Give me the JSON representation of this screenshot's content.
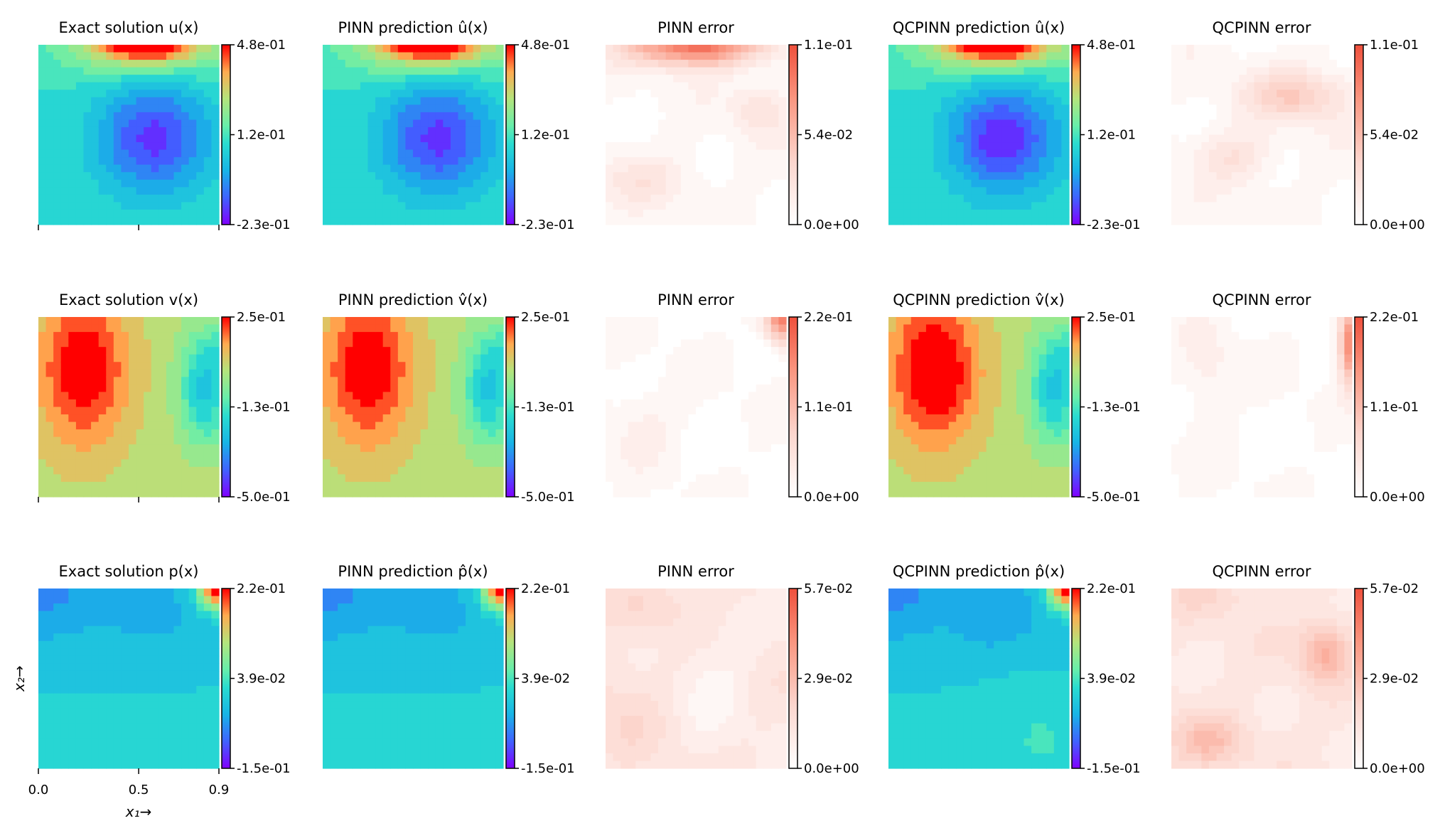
{
  "chart_data": {
    "type": "heatmap",
    "figure": "3x5 grid of filled contour maps over x1 in [0, 0.9] and x2 in [0, 0.9]",
    "x_axis": {
      "label": "x₁→",
      "ticks": [
        "0.0",
        "0.5",
        "0.9"
      ],
      "range": [
        0,
        0.9
      ]
    },
    "y_axis": {
      "label": "x₂→",
      "range": [
        0,
        0.9
      ]
    },
    "colormaps": {
      "field": "rainbow",
      "error": "Reds"
    },
    "rows": [
      {
        "variable": "u",
        "panels": [
          {
            "title": "Exact solution u(x)",
            "kind": "field",
            "field": "u",
            "variant": "exact",
            "colorbar_ticks": [
              "4.8e-01",
              "1.2e-01",
              "-2.3e-01"
            ],
            "vmin": -0.23,
            "vmax": 0.48
          },
          {
            "title": "PINN prediction û(x)",
            "kind": "field",
            "field": "u",
            "variant": "pinn",
            "colorbar_ticks": [
              "4.8e-01",
              "1.2e-01",
              "-2.3e-01"
            ],
            "vmin": -0.23,
            "vmax": 0.48
          },
          {
            "title": "PINN error",
            "kind": "error",
            "field": "u",
            "variant": "pinn",
            "colorbar_ticks": [
              "1.1e-01",
              "5.4e-02",
              "0.0e+00"
            ],
            "vmin": 0,
            "vmax": 0.11
          },
          {
            "title": "QCPINN prediction û(x)",
            "kind": "field",
            "field": "u",
            "variant": "qcpinn",
            "colorbar_ticks": [
              "4.8e-01",
              "1.2e-01",
              "-2.3e-01"
            ],
            "vmin": -0.23,
            "vmax": 0.48
          },
          {
            "title": "QCPINN error",
            "kind": "error",
            "field": "u",
            "variant": "qcpinn",
            "colorbar_ticks": [
              "1.1e-01",
              "5.4e-02",
              "0.0e+00"
            ],
            "vmin": 0,
            "vmax": 0.11
          }
        ]
      },
      {
        "variable": "v",
        "panels": [
          {
            "title": "Exact solution v(x)",
            "kind": "field",
            "field": "v",
            "variant": "exact",
            "colorbar_ticks": [
              "2.5e-01",
              "-1.3e-01",
              "-5.0e-01"
            ],
            "vmin": -0.5,
            "vmax": 0.25
          },
          {
            "title": "PINN prediction v̂(x)",
            "kind": "field",
            "field": "v",
            "variant": "pinn",
            "colorbar_ticks": [
              "2.5e-01",
              "-1.3e-01",
              "-5.0e-01"
            ],
            "vmin": -0.5,
            "vmax": 0.25
          },
          {
            "title": "PINN error",
            "kind": "error",
            "field": "v",
            "variant": "pinn",
            "colorbar_ticks": [
              "2.2e-01",
              "1.1e-01",
              "0.0e+00"
            ],
            "vmin": 0,
            "vmax": 0.22
          },
          {
            "title": "QCPINN prediction v̂(x)",
            "kind": "field",
            "field": "v",
            "variant": "qcpinn",
            "colorbar_ticks": [
              "2.5e-01",
              "-1.3e-01",
              "-5.0e-01"
            ],
            "vmin": -0.5,
            "vmax": 0.25
          },
          {
            "title": "QCPINN error",
            "kind": "error",
            "field": "v",
            "variant": "qcpinn",
            "colorbar_ticks": [
              "2.2e-01",
              "1.1e-01",
              "0.0e+00"
            ],
            "vmin": 0,
            "vmax": 0.22
          }
        ]
      },
      {
        "variable": "p",
        "panels": [
          {
            "title": "Exact solution p(x)",
            "kind": "field",
            "field": "p",
            "variant": "exact",
            "colorbar_ticks": [
              "2.2e-01",
              "3.9e-02",
              "-1.5e-01"
            ],
            "vmin": -0.15,
            "vmax": 0.22
          },
          {
            "title": "PINN prediction p̂(x)",
            "kind": "field",
            "field": "p",
            "variant": "pinn",
            "colorbar_ticks": [
              "2.2e-01",
              "3.9e-02",
              "-1.5e-01"
            ],
            "vmin": -0.15,
            "vmax": 0.22
          },
          {
            "title": "PINN error",
            "kind": "error",
            "field": "p",
            "variant": "pinn",
            "colorbar_ticks": [
              "5.7e-02",
              "2.9e-02",
              "0.0e+00"
            ],
            "vmin": 0,
            "vmax": 0.057
          },
          {
            "title": "QCPINN prediction p̂(x)",
            "kind": "field",
            "field": "p",
            "variant": "qcpinn",
            "colorbar_ticks": [
              "2.2e-01",
              "3.9e-02",
              "-1.5e-01"
            ],
            "vmin": -0.15,
            "vmax": 0.22
          },
          {
            "title": "QCPINN error",
            "kind": "error",
            "field": "p",
            "variant": "qcpinn",
            "colorbar_ticks": [
              "5.7e-02",
              "2.9e-02",
              "0.0e+00"
            ],
            "vmin": 0,
            "vmax": 0.057
          }
        ]
      }
    ]
  }
}
